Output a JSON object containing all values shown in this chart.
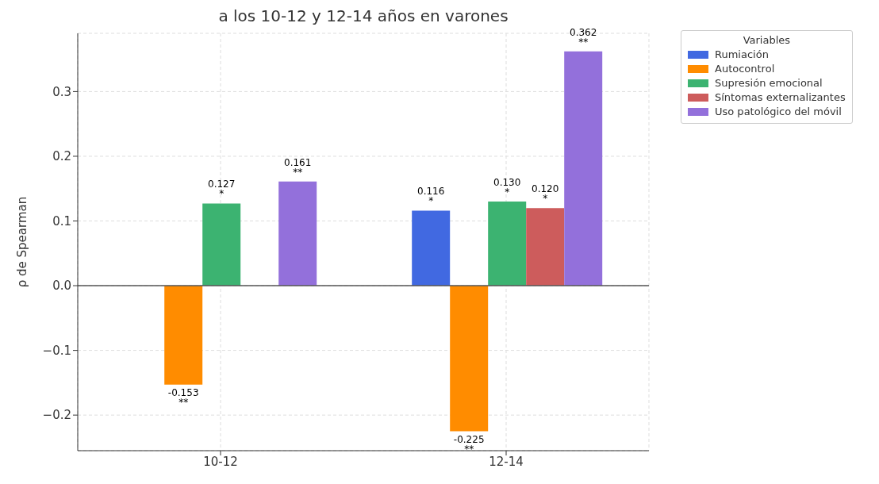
{
  "chart_data": {
    "type": "bar",
    "title": "a los 10-12 y 12-14 años en varones",
    "ylabel": "ρ de Spearman",
    "legend_title": "Variables",
    "categories": [
      "10-12",
      "12-14"
    ],
    "series": [
      {
        "name": "Rumiación",
        "color": "#4169e1",
        "values": [
          null,
          0.116
        ],
        "value_labels": [
          null,
          "0.116\n*"
        ]
      },
      {
        "name": "Autocontrol",
        "color": "#ff8c00",
        "values": [
          -0.153,
          -0.225
        ],
        "value_labels": [
          "-0.153\n**",
          "-0.225\n**"
        ]
      },
      {
        "name": "Supresión emocional",
        "color": "#3cb371",
        "values": [
          0.127,
          0.13
        ],
        "value_labels": [
          "0.127\n*",
          "0.130\n*"
        ]
      },
      {
        "name": "Síntomas externalizantes",
        "color": "#cd5c5c",
        "values": [
          null,
          0.12
        ],
        "value_labels": [
          null,
          "0.120\n*"
        ]
      },
      {
        "name": "Uso patológico del móvil",
        "color": "#9370db",
        "values": [
          0.161,
          0.362
        ],
        "value_labels": [
          "0.161\n**",
          "0.362\n**"
        ]
      }
    ],
    "ylim": [
      -0.255,
      0.39
    ],
    "yticks": [
      {
        "value": -0.2,
        "label": "−0.2"
      },
      {
        "value": -0.1,
        "label": "−0.1"
      },
      {
        "value": 0,
        "label": "0.0"
      },
      0.1,
      0.2,
      0.3
    ],
    "ref_lines": [
      {
        "axis": "y",
        "value": 0,
        "color": "#555555"
      }
    ],
    "grid": true,
    "legend": "top right"
  }
}
